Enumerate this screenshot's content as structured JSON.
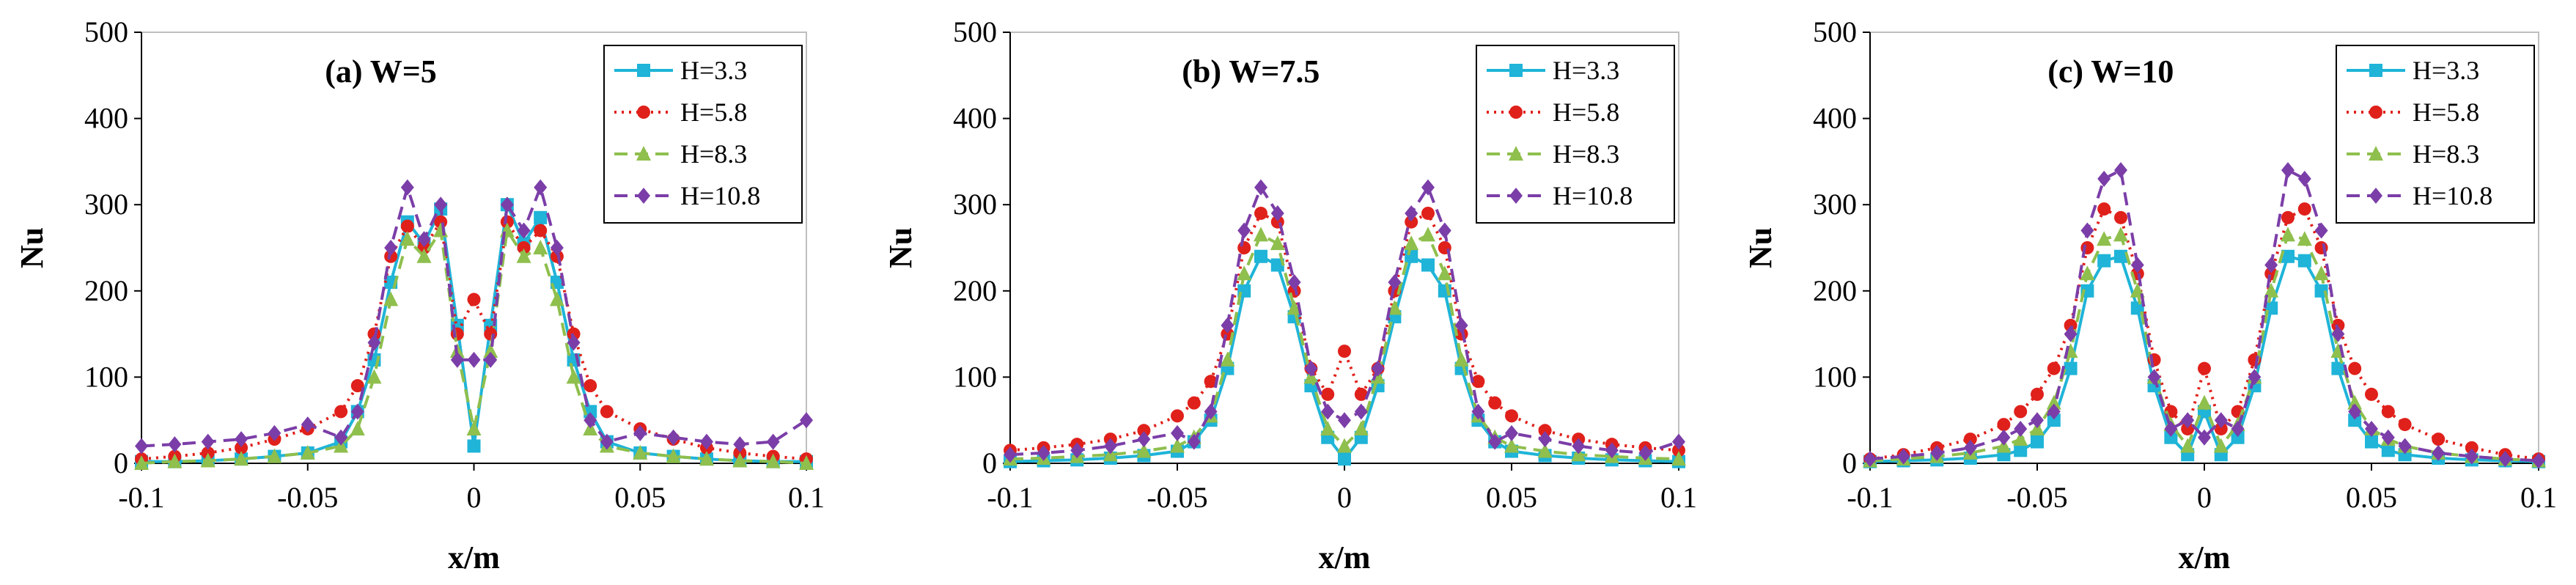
{
  "chart_data": [
    {
      "type": "line",
      "title": "(a) W=5",
      "xlabel": "x/m",
      "ylabel": "Nu",
      "xlim": [
        -0.1,
        0.1
      ],
      "ylim": [
        0,
        500
      ],
      "xticks": [
        "-0.1",
        "-0.05",
        "0",
        "0.05",
        "0.1"
      ],
      "yticks": [
        "0",
        "100",
        "200",
        "300",
        "400",
        "500"
      ],
      "legend_position": "top-right",
      "series": [
        {
          "name": "H=3.3",
          "color": "#1fb4d8",
          "style": "solid",
          "marker": "square",
          "x": [
            -0.1,
            -0.09,
            -0.08,
            -0.07,
            -0.06,
            -0.05,
            -0.04,
            -0.035,
            -0.03,
            -0.025,
            -0.02,
            -0.015,
            -0.01,
            -0.005,
            0,
            0.005,
            0.01,
            0.015,
            0.02,
            0.025,
            0.03,
            0.035,
            0.04,
            0.05,
            0.06,
            0.07,
            0.08,
            0.09,
            0.1
          ],
          "y": [
            2,
            2,
            3,
            5,
            8,
            12,
            25,
            60,
            120,
            210,
            280,
            255,
            295,
            160,
            20,
            160,
            300,
            255,
            285,
            210,
            120,
            60,
            25,
            12,
            8,
            5,
            3,
            2,
            2
          ]
        },
        {
          "name": "H=5.8",
          "color": "#e0201b",
          "style": "dotted",
          "marker": "circle",
          "x": [
            -0.1,
            -0.09,
            -0.08,
            -0.07,
            -0.06,
            -0.05,
            -0.04,
            -0.035,
            -0.03,
            -0.025,
            -0.02,
            -0.015,
            -0.01,
            -0.005,
            0,
            0.005,
            0.01,
            0.015,
            0.02,
            0.025,
            0.03,
            0.035,
            0.04,
            0.05,
            0.06,
            0.07,
            0.08,
            0.09,
            0.1
          ],
          "y": [
            5,
            8,
            12,
            18,
            28,
            40,
            60,
            90,
            150,
            240,
            275,
            250,
            280,
            150,
            190,
            150,
            280,
            250,
            270,
            240,
            150,
            90,
            60,
            40,
            28,
            18,
            12,
            8,
            5
          ]
        },
        {
          "name": "H=8.3",
          "color": "#8fbf4d",
          "style": "dashed",
          "marker": "triangle",
          "x": [
            -0.1,
            -0.09,
            -0.08,
            -0.07,
            -0.06,
            -0.05,
            -0.04,
            -0.035,
            -0.03,
            -0.025,
            -0.02,
            -0.015,
            -0.01,
            -0.005,
            0,
            0.005,
            0.01,
            0.015,
            0.02,
            0.025,
            0.03,
            0.035,
            0.04,
            0.05,
            0.06,
            0.07,
            0.08,
            0.09,
            0.1
          ],
          "y": [
            0,
            2,
            3,
            5,
            8,
            12,
            20,
            40,
            100,
            190,
            260,
            240,
            270,
            130,
            40,
            130,
            270,
            240,
            250,
            190,
            100,
            40,
            20,
            12,
            8,
            5,
            3,
            2,
            0
          ]
        },
        {
          "name": "H=10.8",
          "color": "#7b3ea8",
          "style": "dashed",
          "marker": "diamond",
          "x": [
            -0.1,
            -0.09,
            -0.08,
            -0.07,
            -0.06,
            -0.05,
            -0.04,
            -0.035,
            -0.03,
            -0.025,
            -0.02,
            -0.015,
            -0.01,
            -0.005,
            0,
            0.005,
            0.01,
            0.015,
            0.02,
            0.025,
            0.03,
            0.035,
            0.04,
            0.05,
            0.06,
            0.07,
            0.08,
            0.09,
            0.1
          ],
          "y": [
            20,
            22,
            25,
            28,
            35,
            45,
            30,
            60,
            140,
            250,
            320,
            260,
            300,
            120,
            120,
            120,
            300,
            270,
            320,
            250,
            140,
            50,
            25,
            35,
            30,
            25,
            22,
            25,
            50
          ]
        }
      ]
    },
    {
      "type": "line",
      "title": "(b) W=7.5",
      "xlabel": "x/m",
      "ylabel": "Nu",
      "xlim": [
        -0.1,
        0.1
      ],
      "ylim": [
        0,
        500
      ],
      "xticks": [
        "-0.1",
        "-0.05",
        "0",
        "0.05",
        "0.1"
      ],
      "yticks": [
        "0",
        "100",
        "200",
        "300",
        "400",
        "500"
      ],
      "legend_position": "top-right",
      "series": [
        {
          "name": "H=3.3",
          "color": "#1fb4d8",
          "style": "solid",
          "marker": "square",
          "x": [
            -0.1,
            -0.09,
            -0.08,
            -0.07,
            -0.06,
            -0.05,
            -0.045,
            -0.04,
            -0.035,
            -0.03,
            -0.025,
            -0.02,
            -0.015,
            -0.01,
            -0.005,
            0,
            0.005,
            0.01,
            0.015,
            0.02,
            0.025,
            0.03,
            0.035,
            0.04,
            0.045,
            0.05,
            0.06,
            0.07,
            0.08,
            0.09,
            0.1
          ],
          "y": [
            2,
            3,
            4,
            6,
            9,
            14,
            25,
            50,
            110,
            200,
            240,
            230,
            170,
            90,
            30,
            5,
            30,
            90,
            170,
            240,
            230,
            200,
            110,
            50,
            25,
            14,
            9,
            6,
            4,
            3,
            2
          ]
        },
        {
          "name": "H=5.8",
          "color": "#e0201b",
          "style": "dotted",
          "marker": "circle",
          "x": [
            -0.1,
            -0.09,
            -0.08,
            -0.07,
            -0.06,
            -0.05,
            -0.045,
            -0.04,
            -0.035,
            -0.03,
            -0.025,
            -0.02,
            -0.015,
            -0.01,
            -0.005,
            0,
            0.005,
            0.01,
            0.015,
            0.02,
            0.025,
            0.03,
            0.035,
            0.04,
            0.045,
            0.05,
            0.06,
            0.07,
            0.08,
            0.09,
            0.1
          ],
          "y": [
            15,
            18,
            22,
            28,
            38,
            55,
            70,
            95,
            150,
            250,
            290,
            280,
            200,
            110,
            80,
            130,
            80,
            110,
            200,
            280,
            290,
            250,
            150,
            95,
            70,
            55,
            38,
            28,
            22,
            18,
            15
          ]
        },
        {
          "name": "H=8.3",
          "color": "#8fbf4d",
          "style": "dashed",
          "marker": "triangle",
          "x": [
            -0.1,
            -0.09,
            -0.08,
            -0.07,
            -0.06,
            -0.05,
            -0.045,
            -0.04,
            -0.035,
            -0.03,
            -0.025,
            -0.02,
            -0.015,
            -0.01,
            -0.005,
            0,
            0.005,
            0.01,
            0.015,
            0.02,
            0.025,
            0.03,
            0.035,
            0.04,
            0.045,
            0.05,
            0.06,
            0.07,
            0.08,
            0.09,
            0.1
          ],
          "y": [
            5,
            6,
            8,
            10,
            14,
            20,
            30,
            55,
            120,
            220,
            265,
            255,
            180,
            100,
            40,
            20,
            40,
            100,
            180,
            255,
            265,
            220,
            120,
            55,
            30,
            20,
            14,
            10,
            8,
            6,
            5
          ]
        },
        {
          "name": "H=10.8",
          "color": "#7b3ea8",
          "style": "dashed",
          "marker": "diamond",
          "x": [
            -0.1,
            -0.09,
            -0.08,
            -0.07,
            -0.06,
            -0.05,
            -0.045,
            -0.04,
            -0.035,
            -0.03,
            -0.025,
            -0.02,
            -0.015,
            -0.01,
            -0.005,
            0,
            0.005,
            0.01,
            0.015,
            0.02,
            0.025,
            0.03,
            0.035,
            0.04,
            0.045,
            0.05,
            0.06,
            0.07,
            0.08,
            0.09,
            0.1
          ],
          "y": [
            10,
            12,
            15,
            20,
            28,
            35,
            25,
            60,
            160,
            270,
            320,
            290,
            210,
            110,
            60,
            50,
            60,
            110,
            210,
            290,
            320,
            270,
            160,
            60,
            25,
            35,
            28,
            20,
            15,
            12,
            25
          ]
        }
      ]
    },
    {
      "type": "line",
      "title": "(c) W=10",
      "xlabel": "x/m",
      "ylabel": "Nu",
      "xlim": [
        -0.1,
        0.1
      ],
      "ylim": [
        0,
        500
      ],
      "xticks": [
        "-0.1",
        "-0.05",
        "0",
        "0.05",
        "0.1"
      ],
      "yticks": [
        "0",
        "100",
        "200",
        "300",
        "400",
        "500"
      ],
      "legend_position": "top-right",
      "series": [
        {
          "name": "H=3.3",
          "color": "#1fb4d8",
          "style": "solid",
          "marker": "square",
          "x": [
            -0.1,
            -0.09,
            -0.08,
            -0.07,
            -0.06,
            -0.055,
            -0.05,
            -0.045,
            -0.04,
            -0.035,
            -0.03,
            -0.025,
            -0.02,
            -0.015,
            -0.01,
            -0.005,
            0,
            0.005,
            0.01,
            0.015,
            0.02,
            0.025,
            0.03,
            0.035,
            0.04,
            0.045,
            0.05,
            0.055,
            0.06,
            0.07,
            0.08,
            0.09,
            0.1
          ],
          "y": [
            2,
            3,
            4,
            6,
            10,
            15,
            25,
            50,
            110,
            200,
            235,
            240,
            180,
            90,
            30,
            10,
            60,
            10,
            30,
            90,
            180,
            240,
            235,
            200,
            110,
            50,
            25,
            15,
            10,
            6,
            4,
            3,
            2
          ]
        },
        {
          "name": "H=5.8",
          "color": "#e0201b",
          "style": "dotted",
          "marker": "circle",
          "x": [
            -0.1,
            -0.09,
            -0.08,
            -0.07,
            -0.06,
            -0.055,
            -0.05,
            -0.045,
            -0.04,
            -0.035,
            -0.03,
            -0.025,
            -0.02,
            -0.015,
            -0.01,
            -0.005,
            0,
            0.005,
            0.01,
            0.015,
            0.02,
            0.025,
            0.03,
            0.035,
            0.04,
            0.045,
            0.05,
            0.055,
            0.06,
            0.07,
            0.08,
            0.09,
            0.1
          ],
          "y": [
            5,
            10,
            18,
            28,
            45,
            60,
            80,
            110,
            160,
            250,
            295,
            285,
            220,
            120,
            60,
            40,
            110,
            40,
            60,
            120,
            220,
            285,
            295,
            250,
            160,
            110,
            80,
            60,
            45,
            28,
            18,
            10,
            5
          ]
        },
        {
          "name": "H=8.3",
          "color": "#8fbf4d",
          "style": "dashed",
          "marker": "triangle",
          "x": [
            -0.1,
            -0.09,
            -0.08,
            -0.07,
            -0.06,
            -0.055,
            -0.05,
            -0.045,
            -0.04,
            -0.035,
            -0.03,
            -0.025,
            -0.02,
            -0.015,
            -0.01,
            -0.005,
            0,
            0.005,
            0.01,
            0.015,
            0.02,
            0.025,
            0.03,
            0.035,
            0.04,
            0.045,
            0.05,
            0.055,
            0.06,
            0.07,
            0.08,
            0.09,
            0.1
          ],
          "y": [
            3,
            5,
            8,
            12,
            20,
            28,
            40,
            70,
            130,
            220,
            260,
            265,
            200,
            100,
            45,
            20,
            70,
            20,
            45,
            100,
            200,
            265,
            260,
            220,
            130,
            70,
            40,
            28,
            20,
            12,
            8,
            5,
            3
          ]
        },
        {
          "name": "H=10.8",
          "color": "#7b3ea8",
          "style": "dashed",
          "marker": "diamond",
          "x": [
            -0.1,
            -0.09,
            -0.08,
            -0.07,
            -0.06,
            -0.055,
            -0.05,
            -0.045,
            -0.04,
            -0.035,
            -0.03,
            -0.025,
            -0.02,
            -0.015,
            -0.01,
            -0.005,
            0,
            0.005,
            0.01,
            0.015,
            0.02,
            0.025,
            0.03,
            0.035,
            0.04,
            0.045,
            0.05,
            0.055,
            0.06,
            0.07,
            0.08,
            0.09,
            0.1
          ],
          "y": [
            5,
            8,
            12,
            18,
            30,
            40,
            50,
            60,
            150,
            270,
            330,
            340,
            230,
            100,
            40,
            50,
            30,
            50,
            40,
            100,
            230,
            340,
            330,
            270,
            150,
            60,
            40,
            30,
            20,
            12,
            8,
            5,
            3
          ]
        }
      ]
    }
  ]
}
